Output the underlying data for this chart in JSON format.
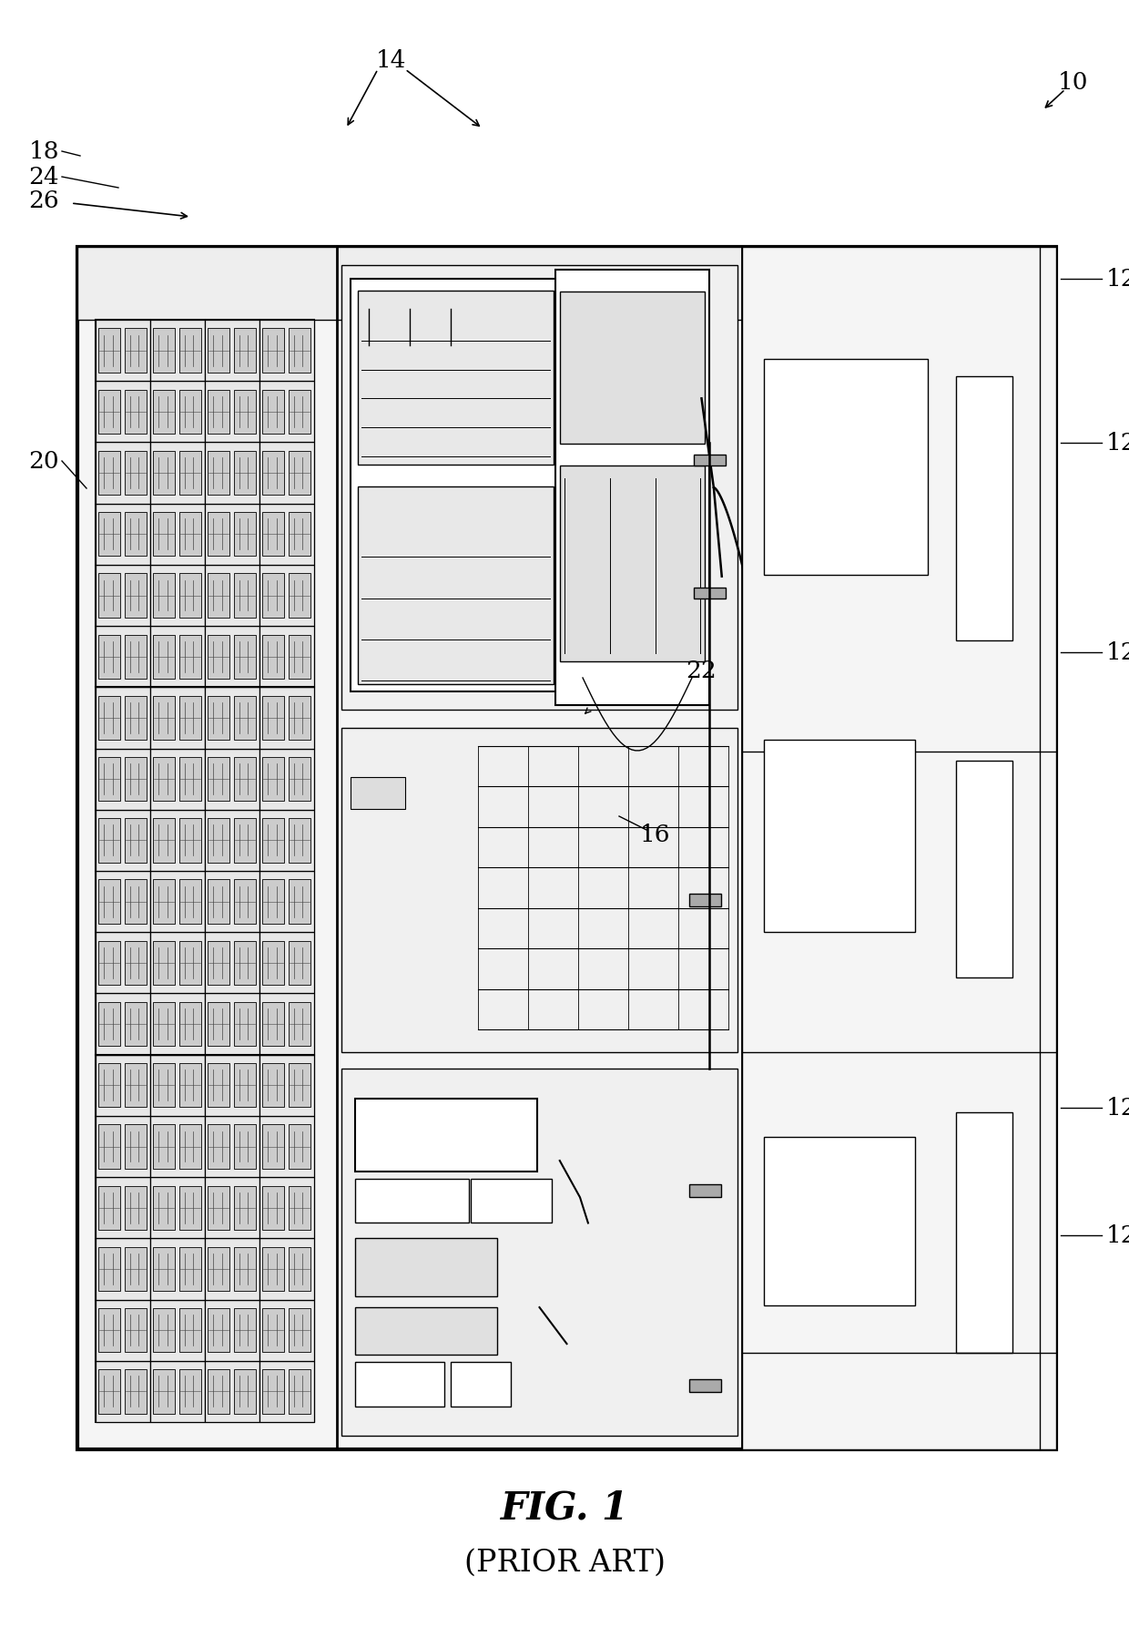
{
  "fig_width": 12.4,
  "fig_height": 17.86,
  "background_color": "#ffffff",
  "title": "FIG. 1",
  "subtitle": "(PRIOR ART)",
  "title_fontsize": 30,
  "subtitle_fontsize": 24,
  "label_fontsize": 19
}
